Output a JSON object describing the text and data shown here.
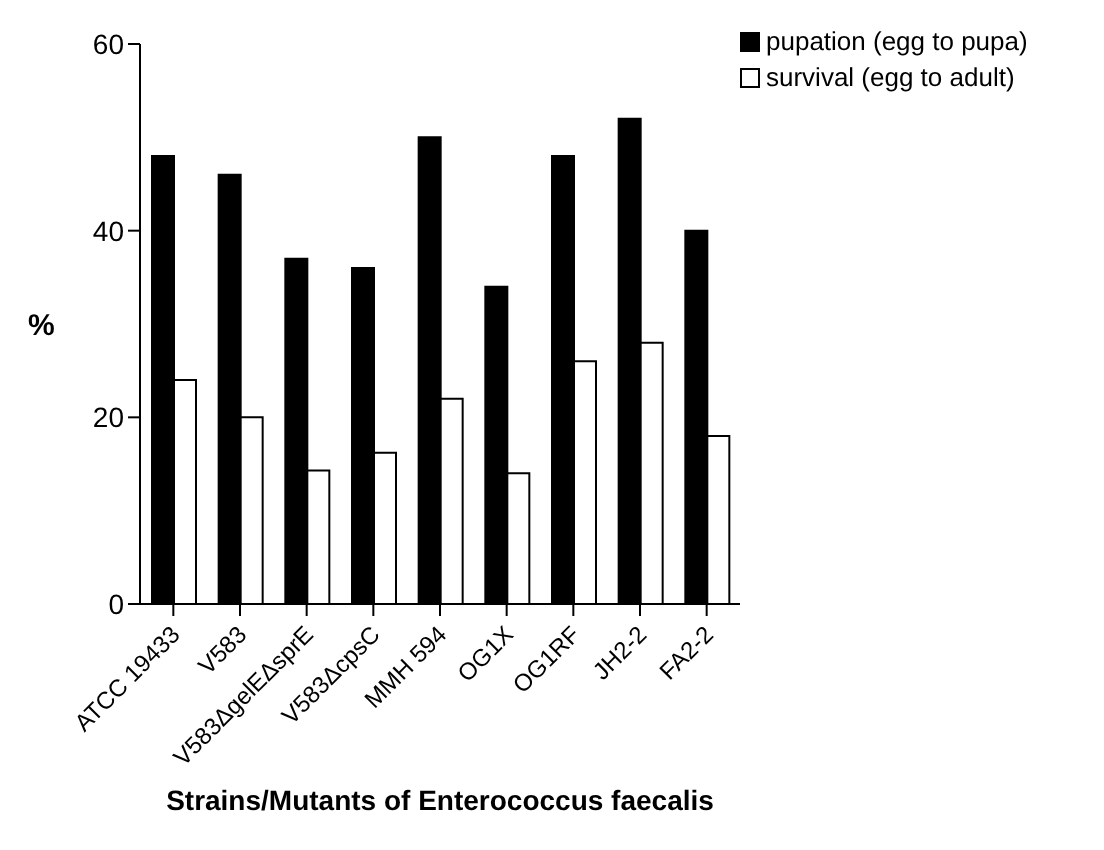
{
  "chart_data": {
    "type": "bar",
    "xlabel": "Strains/Mutants of Enterococcus faecalis",
    "ylabel": "%",
    "categories": [
      "ATCC 19433",
      "V583",
      "V583ΔgelEΔsprE",
      "V583ΔcpsC",
      "MMH 594",
      "OG1X",
      "OG1RF",
      "JH2-2",
      "FA2-2"
    ],
    "series": [
      {
        "name": "pupation (egg to pupa)",
        "color": "#000000",
        "values": [
          48,
          46,
          37,
          36,
          50,
          34,
          48,
          52,
          40
        ]
      },
      {
        "name": "survival (egg to adult)",
        "color": "#ffffff",
        "values": [
          24,
          20,
          14.3,
          16.2,
          22,
          14,
          26,
          28,
          18
        ]
      }
    ],
    "ylim": [
      0,
      60
    ],
    "yticks": [
      0,
      20,
      40,
      60
    ],
    "grid": false,
    "legend": "top right"
  }
}
